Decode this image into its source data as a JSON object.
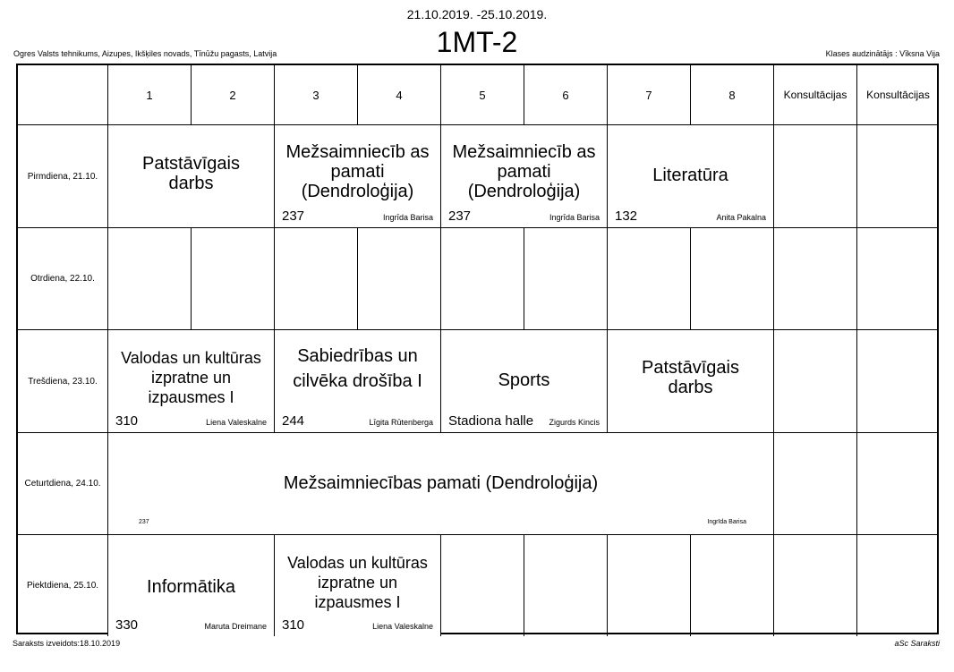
{
  "header": {
    "dates": "21.10.2019. -25.10.2019.",
    "class_name": "1MT-2",
    "school": "Ogres Valsts tehnikums, Aizupes, Ikšķiles novads, Tīnūžu pagasts, Latvija",
    "class_teacher": "Klases audzinātājs : Vīksna Vija"
  },
  "columns": [
    "1",
    "2",
    "3",
    "4",
    "5",
    "6",
    "7",
    "8",
    "Konsultācijas",
    "Konsultācijas"
  ],
  "days": [
    "Pirmdiena, 21.10.",
    "Otrdiena, 22.10.",
    "Trešdiena, 23.10.",
    "Ceturtdiena, 24.10.",
    "Piektdiena, 25.10."
  ],
  "lessons": [
    {
      "subject": "Patstāvīgais darbs",
      "room": "",
      "teacher": ""
    },
    {
      "subject": "Mežsaimniecīb as pamati (Dendroloģija)",
      "room": "237",
      "teacher": "Ingrīda Barisa"
    },
    {
      "subject": "Mežsaimniecīb as pamati (Dendroloģija)",
      "room": "237",
      "teacher": "Ingrīda Barisa"
    },
    {
      "subject": "Literatūra",
      "room": "132",
      "teacher": "Anita Pakalna"
    },
    {
      "subject": "Valodas un kultūras izpratne un izpausmes I",
      "room": "310",
      "teacher": "Liena Valeskalne"
    },
    {
      "subject": "Sabiedrības un cilvēka drošība I",
      "room": "244",
      "teacher": "Līgita Rūtenberga"
    },
    {
      "subject": "Sports",
      "room": "Stadiona halle",
      "teacher": "Zigurds Kincis"
    },
    {
      "subject": "Patstāvīgais darbs",
      "room": "",
      "teacher": ""
    },
    {
      "subject": "Mežsaimniecības pamati (Dendroloģija)",
      "room": "237",
      "teacher": "Ingrīda Barisa"
    },
    {
      "subject": "Informātika",
      "room": "330",
      "teacher": "Maruta Dreimane"
    },
    {
      "subject": "Valodas un kultūras izpratne un izpausmes I",
      "room": "310",
      "teacher": "Liena Valeskalne"
    }
  ],
  "footer": {
    "created": "Saraksts izveidots:18.10.2019",
    "software": "aSc Saraksti"
  }
}
